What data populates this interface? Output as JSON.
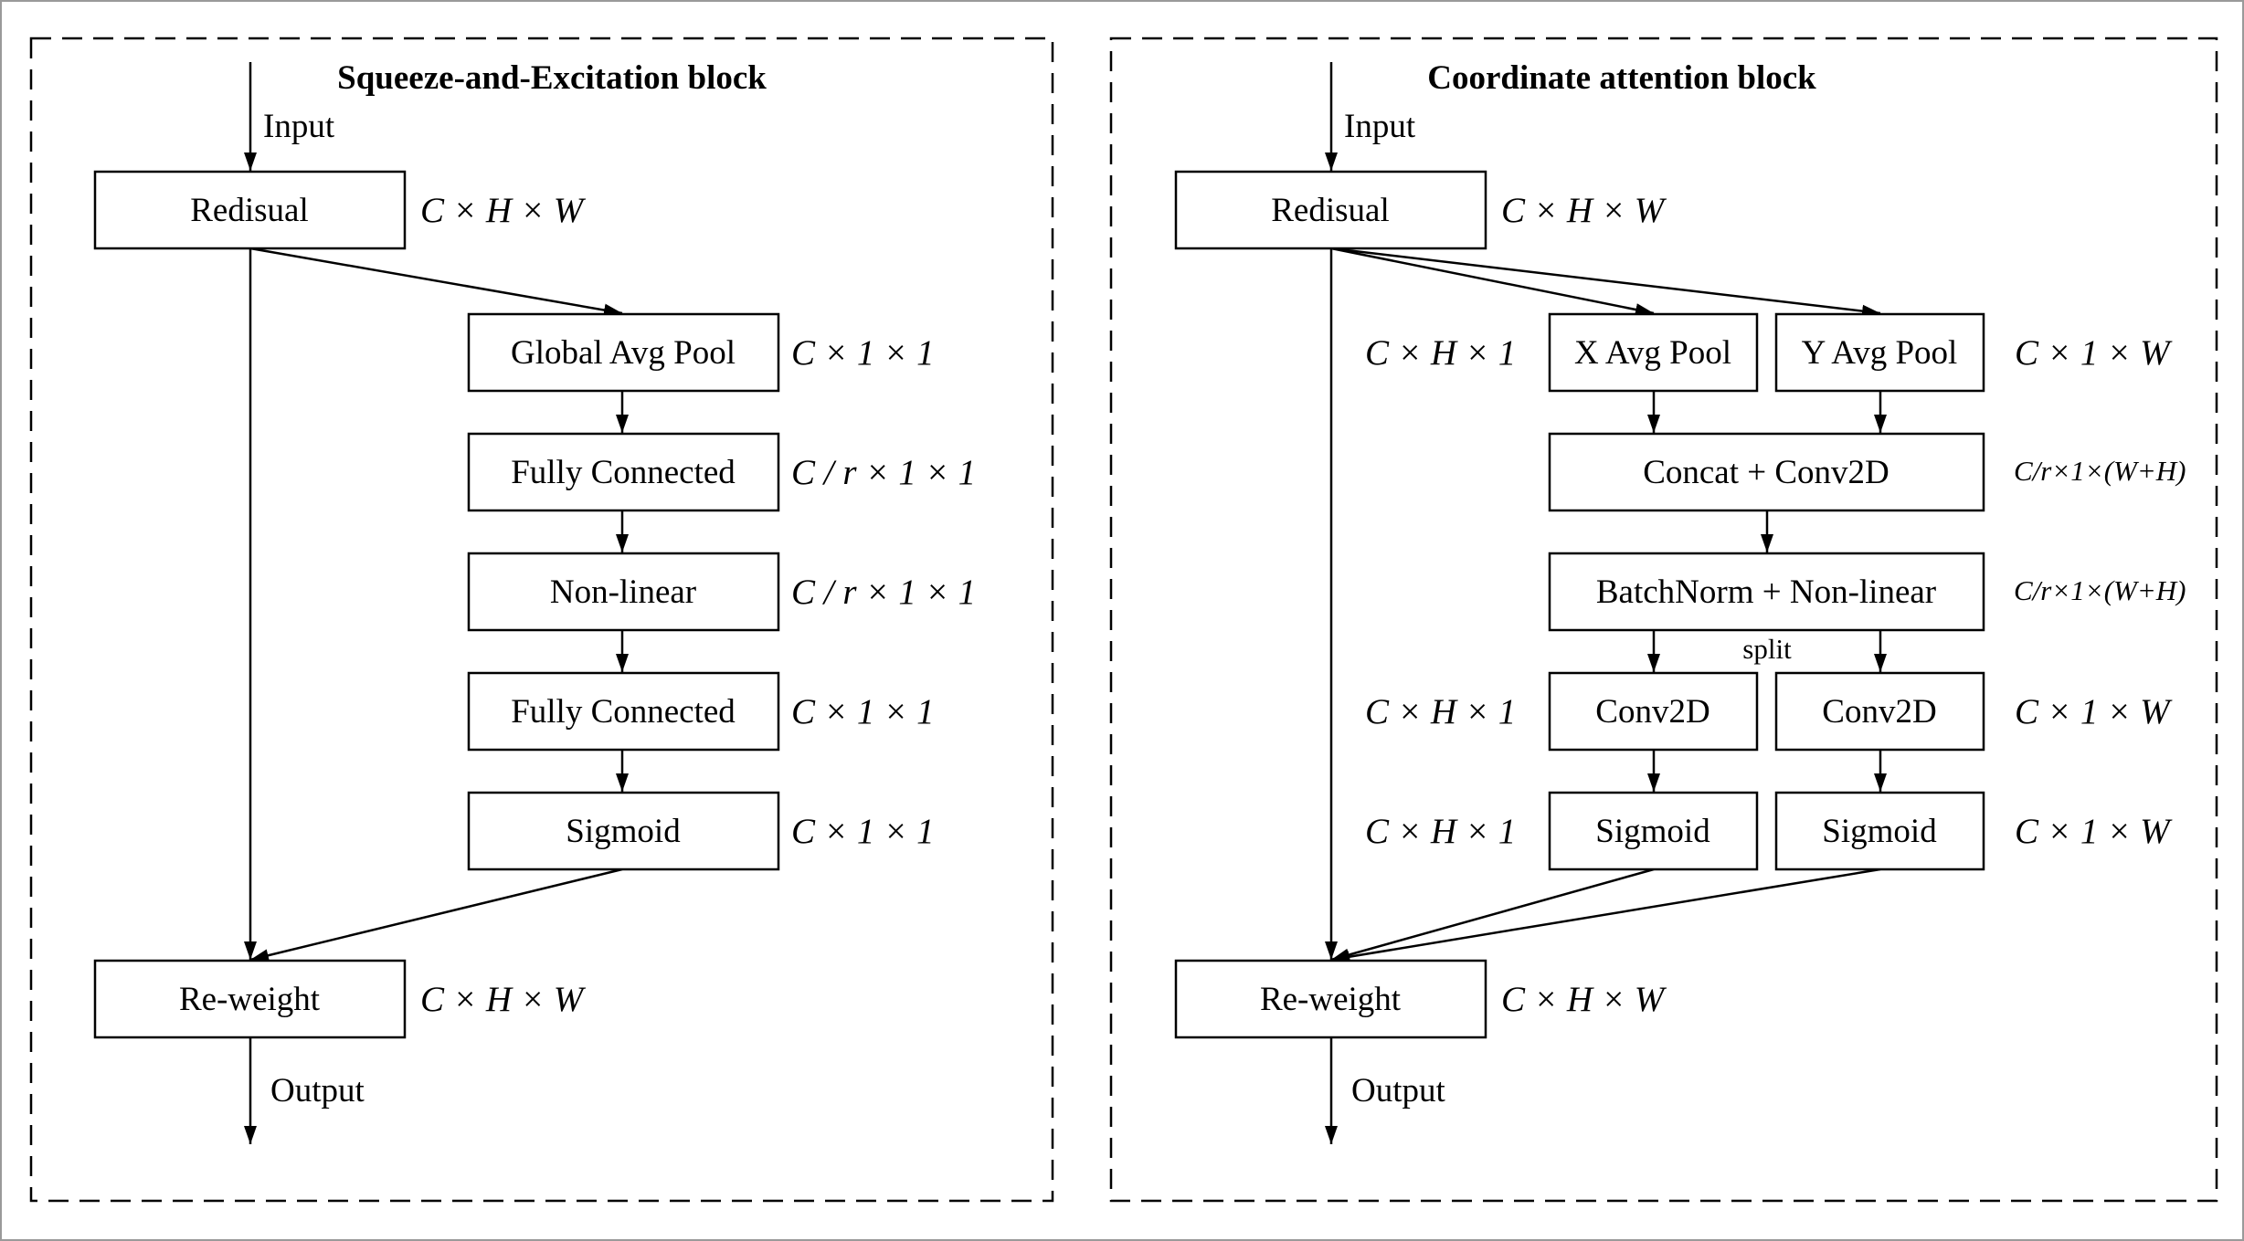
{
  "panels": [
    {
      "title": "Squeeze-and-Excitation block",
      "input_label": "Input",
      "output_label": "Output",
      "nodes": {
        "residual": "Redisual",
        "gap": "Global Avg Pool",
        "fc1": "Fully Connected",
        "nonlinear": "Non-linear",
        "fc2": "Fully Connected",
        "sigmoid": "Sigmoid",
        "reweight": "Re-weight"
      },
      "dims": {
        "residual": "C × H × W",
        "gap": "C  × 1 × 1",
        "fc1": "C / r × 1 × 1",
        "nonlinear": "C / r × 1 × 1",
        "fc2": "C  × 1 × 1",
        "sigmoid": "C  × 1 × 1",
        "reweight": "C × H × W"
      }
    },
    {
      "title": "Coordinate attention block",
      "input_label": "Input",
      "output_label": "Output",
      "split_label": "split",
      "nodes": {
        "residual": "Redisual",
        "xpool": "X Avg Pool",
        "ypool": "Y Avg Pool",
        "concat": "Concat + Conv2D",
        "bn": "BatchNorm + Non-linear",
        "conv_h": "Conv2D",
        "conv_w": "Conv2D",
        "sig_h": "Sigmoid",
        "sig_w": "Sigmoid",
        "reweight": "Re-weight"
      },
      "dims": {
        "residual": "C × H × W",
        "xpool": "C × H × 1",
        "ypool": "C × 1 × W",
        "concat": "C/r×1×(W+H)",
        "bn": "C/r×1×(W+H)",
        "conv_h": "C × H × 1",
        "conv_w": "C × 1 × W",
        "sig_h": "C × H × 1",
        "sig_w": "C × 1 × W",
        "reweight": "C × H × W"
      }
    }
  ]
}
